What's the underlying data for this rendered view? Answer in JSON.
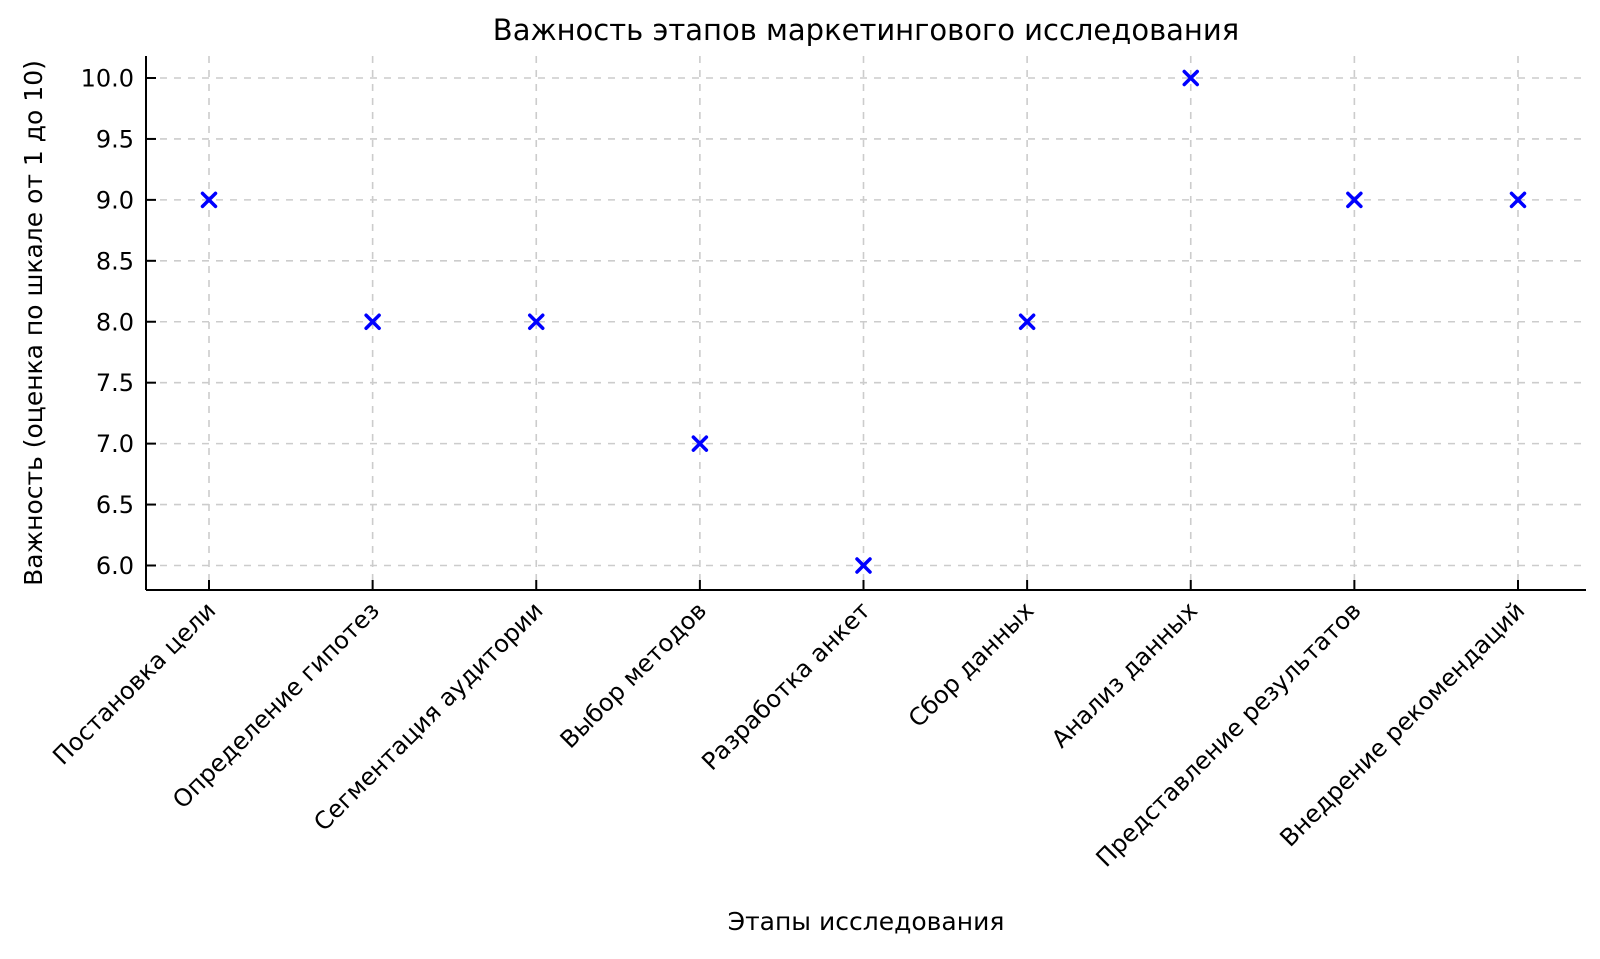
{
  "figure": {
    "background_color": "#ffffff"
  },
  "chart_data": {
    "type": "scatter",
    "title": "Важность этапов маркетингового исследования",
    "xlabel": "Этапы исследования",
    "ylabel": "Важность (оценка по шкале от 1 до 10)",
    "categories": [
      "Постановка цели",
      "Определение гипотез",
      "Сегментация аудитории",
      "Выбор методов",
      "Разработка анкет",
      "Сбор данных",
      "Анализ данных",
      "Представление результатов",
      "Внедрение рекомендаций"
    ],
    "values": [
      9,
      8,
      8,
      7,
      6,
      8,
      10,
      9,
      9
    ],
    "yticks": {
      "values": [
        6.0,
        6.5,
        7.0,
        7.5,
        8.0,
        8.5,
        9.0,
        9.5,
        10.0
      ],
      "labels": [
        "6.0",
        "6.5",
        "7.0",
        "7.5",
        "8.0",
        "8.5",
        "9.0",
        "9.5",
        "10.0"
      ]
    },
    "ylim": [
      5.8,
      10.2
    ],
    "x_tick_rotation_deg": 45,
    "marker": {
      "symbol": "x",
      "color": "#0000ff",
      "size": 13,
      "stroke_width": 3.5
    },
    "grid": {
      "visible": true,
      "style": "dashed",
      "color": "#cccccc"
    },
    "axis_color": "#000000",
    "text_color": "#000000",
    "legend": null
  }
}
